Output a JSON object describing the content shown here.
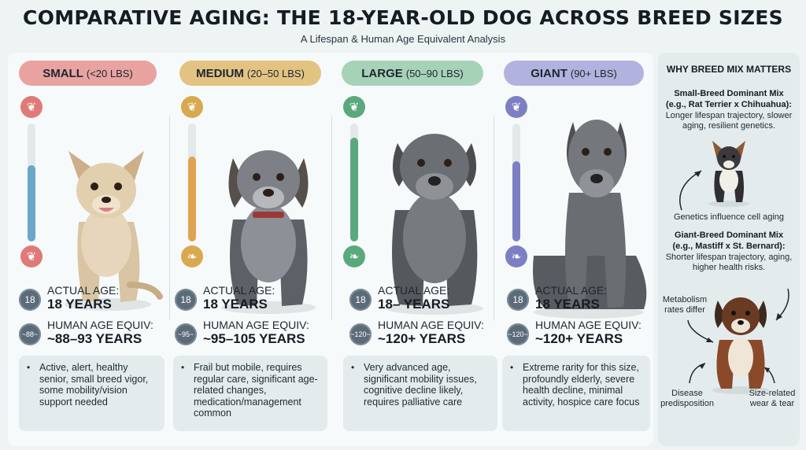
{
  "header": {
    "title": "COMPARATIVE AGING: THE 18-YEAR-OLD DOG ACROSS BREED SIZES",
    "subtitle": "A Lifespan & Human Age Equivalent Analysis"
  },
  "columns": [
    {
      "size": "SMALL",
      "range": "(<20 LBS)",
      "color": "#e8a3a1",
      "accent": "#e07a78",
      "thermo_fill": 0.65,
      "thermo_color": "#6aa7c9",
      "age_badge": "18",
      "actual_label": "ACTUAL AGE:",
      "actual_value": "18 YEARS",
      "equiv_badge": "~88~",
      "equiv_label": "HUMAN AGE EQUIV:",
      "equiv_value": "~88–93 YEARS",
      "description": "Active, alert, healthy senior, small breed vigor, some mobility/vision support needed"
    },
    {
      "size": "MEDIUM",
      "range": "(20–50 LBS)",
      "color": "#e3c381",
      "accent": "#d9a94e",
      "thermo_fill": 0.72,
      "thermo_color": "#e0a451",
      "age_badge": "18",
      "actual_label": "ACTUAL AGE:",
      "actual_value": "18 YEARS",
      "equiv_badge": "~95~",
      "equiv_label": "HUMAN AGE EQUIV:",
      "equiv_value": "~95–105 YEARS",
      "description": "Frail but mobile, requires regular care, significant age-related changes, medication/management common"
    },
    {
      "size": "LARGE",
      "range": "(50–90 LBS)",
      "color": "#a6d2b7",
      "accent": "#5aa97d",
      "thermo_fill": 0.88,
      "thermo_color": "#5aa97d",
      "age_badge": "18",
      "actual_label": "ACTUAL AGE:",
      "actual_value": "18– YEARS",
      "equiv_badge": "~120~",
      "equiv_label": "HUMAN AGE EQUIV:",
      "equiv_value": "~120+ YEARS",
      "description": "Very advanced age, significant mobility issues, cognitive decline likely, requires palliative care"
    },
    {
      "size": "GIANT",
      "range": "(90+ LBS)",
      "color": "#b1b3de",
      "accent": "#7d7fc4",
      "thermo_fill": 0.68,
      "thermo_color": "#7d7fc4",
      "age_badge": "18",
      "actual_label": "ACTUAL AGE:",
      "actual_value": "18 YEARS",
      "equiv_badge": "~120~",
      "equiv_label": "HUMAN AGE EQUIV:",
      "equiv_value": "~120+ YEARS",
      "description": "Extreme rarity for this size, profoundly elderly, severe health decline, minimal activity, hospice care focus"
    }
  ],
  "sidebar": {
    "title": "WHY BREED MIX MATTERS",
    "small_head": "Small-Breed Dominant Mix",
    "small_example": "(e.g., Rat Terrier x Chihuahua):",
    "small_text": "Longer lifespan trajectory, slower aging, resilient genetics.",
    "genetics_note": "Genetics influence cell aging",
    "giant_head": "Giant-Breed Dominant Mix",
    "giant_example": "(e.g., Mastiff x St. Bernard):",
    "giant_text": "Shorter lifespan trajectory, aging, higher health risks.",
    "metabolism_note": "Metabolism rates differ",
    "disease_note": "Disease predisposition",
    "wear_note": "Size-related wear & tear"
  }
}
